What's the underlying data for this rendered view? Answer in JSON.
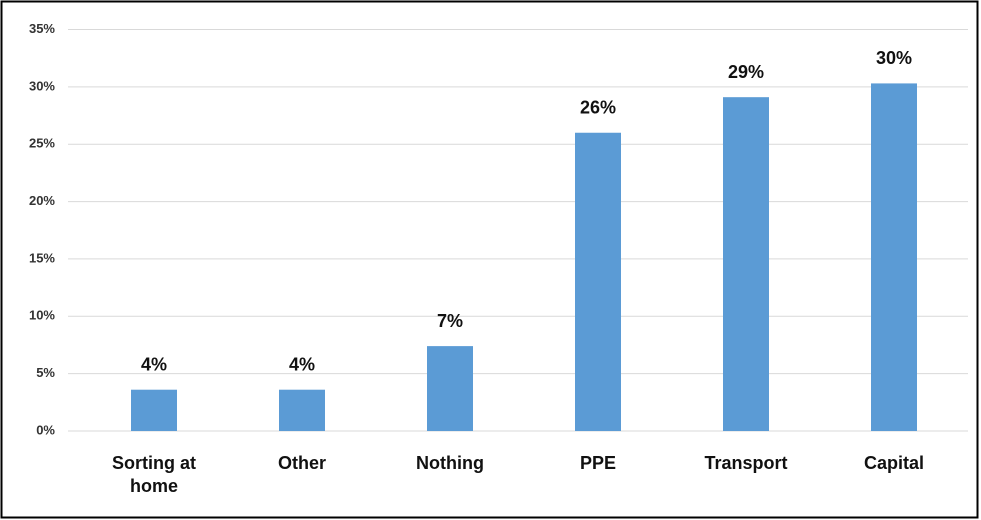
{
  "chart_data": {
    "type": "bar",
    "categories": [
      "Sorting at home",
      "Other",
      "Nothing",
      "PPE",
      "Transport",
      "Capital"
    ],
    "values": [
      3.6,
      3.6,
      7.4,
      26,
      29.1,
      30.3
    ],
    "value_labels": [
      "4%",
      "4%",
      "7%",
      "26%",
      "29%",
      "30%"
    ],
    "color": "#5b9bd5",
    "ylim": [
      0,
      35
    ],
    "yticks": [
      {
        "value": 0,
        "label": "0%"
      },
      {
        "value": 5,
        "label": "5%"
      },
      {
        "value": 10,
        "label": "10%"
      },
      {
        "value": 15,
        "label": "15%"
      },
      {
        "value": 20,
        "label": "20%"
      },
      {
        "value": 25,
        "label": "25%"
      },
      {
        "value": 30,
        "label": "30%"
      },
      {
        "value": 35,
        "label": "35%"
      }
    ],
    "grid": true
  }
}
